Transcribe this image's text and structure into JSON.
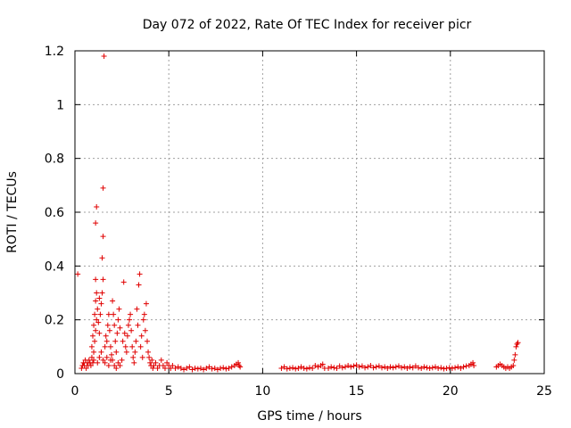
{
  "chart_data": {
    "type": "scatter",
    "title": "Day 072 of 2022, Rate Of TEC Index for receiver picr",
    "xlabel": "GPS time / hours",
    "ylabel": "ROTI / TECUs",
    "xlim": [
      0,
      25
    ],
    "ylim": [
      0,
      1.2
    ],
    "x_ticks": [
      0,
      5,
      10,
      15,
      20,
      25
    ],
    "x_tick_labels": [
      "0",
      "5",
      "10",
      "15",
      "20",
      "25"
    ],
    "y_ticks": [
      0,
      0.2,
      0.4,
      0.6,
      0.8,
      1.0,
      1.2
    ],
    "y_tick_labels": [
      "0",
      "0.2",
      "0.4",
      "0.6",
      "0.8",
      "1",
      "1.2"
    ],
    "grid": true,
    "marker": "+",
    "color": "#e00000",
    "series": [
      {
        "name": "ROTI",
        "points": [
          [
            0.15,
            0.37
          ],
          [
            0.35,
            0.02
          ],
          [
            0.4,
            0.03
          ],
          [
            0.45,
            0.04
          ],
          [
            0.5,
            0.03
          ],
          [
            0.55,
            0.05
          ],
          [
            0.6,
            0.02
          ],
          [
            0.65,
            0.04
          ],
          [
            0.7,
            0.03
          ],
          [
            0.75,
            0.05
          ],
          [
            0.8,
            0.04
          ],
          [
            0.85,
            0.03
          ],
          [
            0.9,
            0.06
          ],
          [
            0.95,
            0.04
          ],
          [
            1.0,
            0.05
          ],
          [
            0.9,
            0.1
          ],
          [
            0.95,
            0.14
          ],
          [
            1.0,
            0.18
          ],
          [
            1.05,
            0.22
          ],
          [
            1.1,
            0.27
          ],
          [
            1.15,
            0.3
          ],
          [
            1.0,
            0.08
          ],
          [
            1.05,
            0.12
          ],
          [
            1.1,
            0.16
          ],
          [
            1.15,
            0.2
          ],
          [
            1.2,
            0.24
          ],
          [
            1.25,
            0.19
          ],
          [
            1.3,
            0.15
          ],
          [
            1.1,
            0.56
          ],
          [
            1.15,
            0.62
          ],
          [
            1.1,
            0.35
          ],
          [
            1.3,
            0.28
          ],
          [
            1.35,
            0.22
          ],
          [
            1.4,
            0.26
          ],
          [
            1.45,
            0.3
          ],
          [
            1.5,
            0.35
          ],
          [
            1.45,
            0.43
          ],
          [
            1.5,
            0.51
          ],
          [
            1.5,
            0.69
          ],
          [
            1.55,
            1.18
          ],
          [
            1.2,
            0.04
          ],
          [
            1.3,
            0.06
          ],
          [
            1.4,
            0.08
          ],
          [
            1.5,
            0.05
          ],
          [
            1.6,
            0.1
          ],
          [
            1.65,
            0.14
          ],
          [
            1.7,
            0.12
          ],
          [
            1.75,
            0.18
          ],
          [
            1.8,
            0.22
          ],
          [
            1.85,
            0.16
          ],
          [
            1.9,
            0.1
          ],
          [
            1.95,
            0.07
          ],
          [
            2.0,
            0.05
          ],
          [
            1.6,
            0.04
          ],
          [
            1.7,
            0.06
          ],
          [
            1.8,
            0.03
          ],
          [
            1.9,
            0.05
          ],
          [
            2.0,
            0.27
          ],
          [
            2.05,
            0.22
          ],
          [
            2.1,
            0.18
          ],
          [
            2.15,
            0.12
          ],
          [
            2.2,
            0.08
          ],
          [
            2.25,
            0.15
          ],
          [
            2.3,
            0.2
          ],
          [
            2.35,
            0.24
          ],
          [
            2.4,
            0.17
          ],
          [
            2.1,
            0.03
          ],
          [
            2.2,
            0.02
          ],
          [
            2.3,
            0.04
          ],
          [
            2.4,
            0.03
          ],
          [
            2.5,
            0.05
          ],
          [
            2.55,
            0.12
          ],
          [
            2.6,
            0.34
          ],
          [
            2.65,
            0.15
          ],
          [
            2.7,
            0.1
          ],
          [
            2.75,
            0.08
          ],
          [
            2.8,
            0.14
          ],
          [
            2.85,
            0.18
          ],
          [
            2.9,
            0.2
          ],
          [
            2.95,
            0.22
          ],
          [
            3.0,
            0.16
          ],
          [
            3.05,
            0.1
          ],
          [
            3.1,
            0.06
          ],
          [
            3.15,
            0.04
          ],
          [
            3.2,
            0.08
          ],
          [
            3.25,
            0.12
          ],
          [
            3.3,
            0.24
          ],
          [
            3.35,
            0.18
          ],
          [
            3.4,
            0.33
          ],
          [
            3.45,
            0.37
          ],
          [
            3.5,
            0.1
          ],
          [
            3.55,
            0.14
          ],
          [
            3.6,
            0.06
          ],
          [
            3.65,
            0.2
          ],
          [
            3.7,
            0.22
          ],
          [
            3.75,
            0.16
          ],
          [
            3.8,
            0.26
          ],
          [
            3.85,
            0.12
          ],
          [
            3.9,
            0.08
          ],
          [
            3.95,
            0.06
          ],
          [
            4.0,
            0.04
          ],
          [
            4.05,
            0.03
          ],
          [
            4.1,
            0.05
          ],
          [
            4.15,
            0.02
          ],
          [
            4.2,
            0.03
          ],
          [
            4.3,
            0.04
          ],
          [
            4.4,
            0.02
          ],
          [
            4.5,
            0.03
          ],
          [
            4.6,
            0.05
          ],
          [
            4.7,
            0.03
          ],
          [
            4.8,
            0.02
          ],
          [
            4.9,
            0.04
          ],
          [
            5.0,
            0.03
          ],
          [
            5.1,
            0.02
          ],
          [
            5.2,
            0.03
          ],
          [
            5.35,
            0.02
          ],
          [
            5.5,
            0.025
          ],
          [
            5.65,
            0.02
          ],
          [
            5.8,
            0.015
          ],
          [
            5.95,
            0.02
          ],
          [
            6.1,
            0.025
          ],
          [
            6.25,
            0.015
          ],
          [
            6.4,
            0.02
          ],
          [
            6.55,
            0.018
          ],
          [
            6.7,
            0.02
          ],
          [
            6.85,
            0.015
          ],
          [
            7.0,
            0.02
          ],
          [
            7.15,
            0.025
          ],
          [
            7.3,
            0.018
          ],
          [
            7.45,
            0.02
          ],
          [
            7.6,
            0.015
          ],
          [
            7.75,
            0.02
          ],
          [
            7.9,
            0.022
          ],
          [
            8.05,
            0.018
          ],
          [
            8.2,
            0.02
          ],
          [
            8.35,
            0.025
          ],
          [
            8.5,
            0.03
          ],
          [
            8.6,
            0.035
          ],
          [
            8.7,
            0.04
          ],
          [
            8.75,
            0.03
          ],
          [
            8.8,
            0.025
          ],
          [
            11.0,
            0.02
          ],
          [
            11.15,
            0.025
          ],
          [
            11.3,
            0.018
          ],
          [
            11.45,
            0.02
          ],
          [
            11.6,
            0.022
          ],
          [
            11.75,
            0.018
          ],
          [
            11.9,
            0.02
          ],
          [
            12.05,
            0.025
          ],
          [
            12.2,
            0.02
          ],
          [
            12.35,
            0.018
          ],
          [
            12.5,
            0.022
          ],
          [
            12.65,
            0.02
          ],
          [
            12.8,
            0.03
          ],
          [
            12.95,
            0.025
          ],
          [
            13.1,
            0.03
          ],
          [
            13.2,
            0.035
          ],
          [
            13.3,
            0.02
          ],
          [
            13.5,
            0.02
          ],
          [
            13.65,
            0.025
          ],
          [
            13.8,
            0.022
          ],
          [
            13.95,
            0.02
          ],
          [
            14.1,
            0.028
          ],
          [
            14.25,
            0.022
          ],
          [
            14.4,
            0.025
          ],
          [
            14.55,
            0.03
          ],
          [
            14.7,
            0.025
          ],
          [
            14.85,
            0.028
          ],
          [
            15.0,
            0.032
          ],
          [
            15.15,
            0.025
          ],
          [
            15.3,
            0.028
          ],
          [
            15.45,
            0.022
          ],
          [
            15.6,
            0.025
          ],
          [
            15.75,
            0.03
          ],
          [
            15.9,
            0.022
          ],
          [
            16.05,
            0.025
          ],
          [
            16.2,
            0.028
          ],
          [
            16.35,
            0.022
          ],
          [
            16.5,
            0.025
          ],
          [
            16.65,
            0.02
          ],
          [
            16.8,
            0.025
          ],
          [
            16.95,
            0.022
          ],
          [
            17.1,
            0.025
          ],
          [
            17.25,
            0.028
          ],
          [
            17.4,
            0.022
          ],
          [
            17.55,
            0.025
          ],
          [
            17.7,
            0.02
          ],
          [
            17.85,
            0.025
          ],
          [
            18.0,
            0.022
          ],
          [
            18.15,
            0.028
          ],
          [
            18.3,
            0.022
          ],
          [
            18.45,
            0.02
          ],
          [
            18.6,
            0.025
          ],
          [
            18.75,
            0.022
          ],
          [
            18.9,
            0.02
          ],
          [
            19.05,
            0.022
          ],
          [
            19.2,
            0.025
          ],
          [
            19.35,
            0.02
          ],
          [
            19.5,
            0.022
          ],
          [
            19.65,
            0.018
          ],
          [
            19.8,
            0.02
          ],
          [
            19.95,
            0.022
          ],
          [
            20.1,
            0.02
          ],
          [
            20.25,
            0.022
          ],
          [
            20.4,
            0.025
          ],
          [
            20.55,
            0.02
          ],
          [
            20.7,
            0.025
          ],
          [
            20.85,
            0.028
          ],
          [
            21.0,
            0.03
          ],
          [
            21.1,
            0.035
          ],
          [
            21.2,
            0.04
          ],
          [
            21.25,
            0.03
          ],
          [
            22.45,
            0.025
          ],
          [
            22.55,
            0.03
          ],
          [
            22.65,
            0.035
          ],
          [
            22.75,
            0.03
          ],
          [
            22.85,
            0.025
          ],
          [
            22.95,
            0.02
          ],
          [
            23.05,
            0.025
          ],
          [
            23.15,
            0.02
          ],
          [
            23.25,
            0.025
          ],
          [
            23.35,
            0.03
          ],
          [
            23.4,
            0.05
          ],
          [
            23.45,
            0.07
          ],
          [
            23.5,
            0.1
          ],
          [
            23.55,
            0.11
          ],
          [
            23.6,
            0.115
          ]
        ]
      }
    ]
  }
}
